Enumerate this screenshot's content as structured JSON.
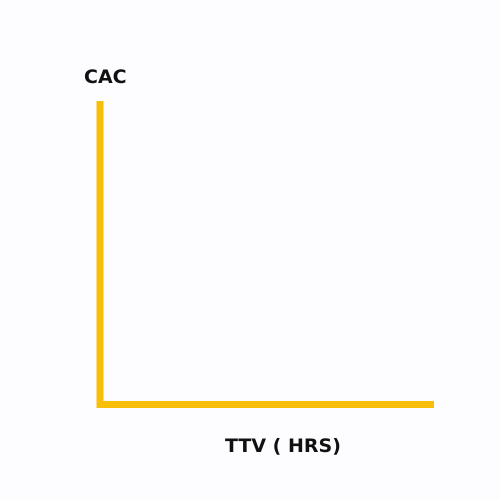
{
  "chart_data": {
    "type": "line",
    "title": "",
    "xlabel": "TTV ( HRS)",
    "ylabel": "CAC",
    "series": [],
    "grid": false,
    "legend": "none",
    "axis_color": "#F9BE0A"
  }
}
